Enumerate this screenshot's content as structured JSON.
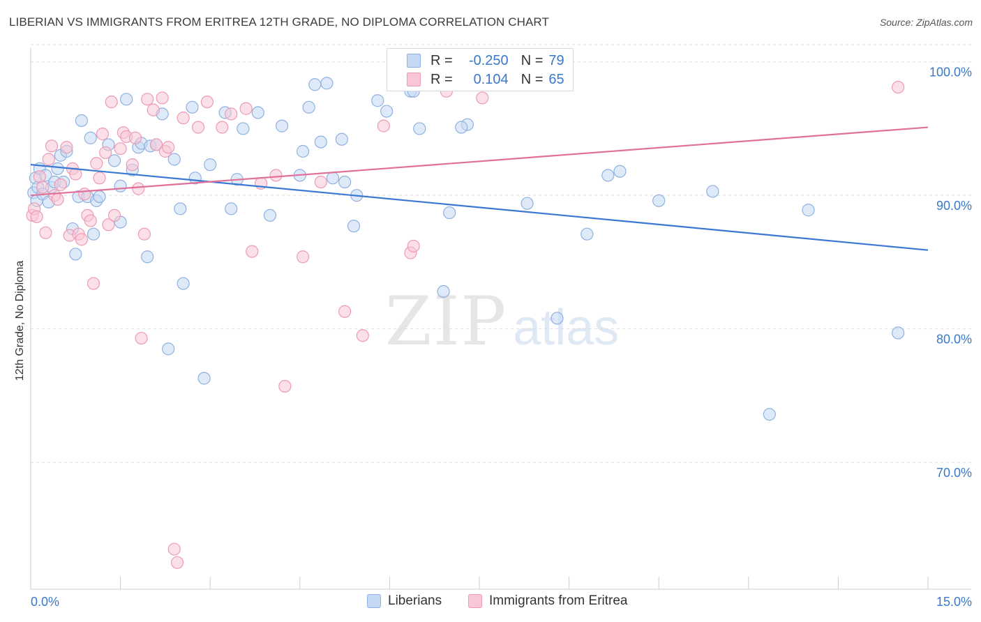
{
  "title": "LIBERIAN VS IMMIGRANTS FROM ERITREA 12TH GRADE, NO DIPLOMA CORRELATION CHART",
  "source": "Source: ZipAtlas.com",
  "watermark": {
    "zip": "ZIP",
    "atlas": "atlas"
  },
  "legend": {
    "rows": [
      {
        "r_label": "R =",
        "r_value": "-0.250",
        "n_label": "N =",
        "n_value": "79"
      },
      {
        "r_label": "R =",
        "r_value": "0.104",
        "n_label": "N =",
        "n_value": "65"
      }
    ]
  },
  "colors": {
    "blue_fill": "#c5d9f4",
    "blue_stroke": "#8fb1e0",
    "blue_line": "#3a78d4",
    "pink_fill": "#f8c6d6",
    "pink_stroke": "#ec9bb6",
    "pink_line": "#e0709a",
    "tick_text": "#3a78c9",
    "grid": "#dddddd"
  },
  "chart_data": {
    "type": "scatter",
    "title": "LIBERIAN VS IMMIGRANTS FROM ERITREA 12TH GRADE, NO DIPLOMA CORRELATION CHART",
    "xlabel": "",
    "ylabel": "12th Grade, No Diploma",
    "xlim": [
      0,
      15
    ],
    "ylim": [
      60.5,
      101.5
    ],
    "x_tick_labels": [
      "0.0%",
      "15.0%"
    ],
    "y_ticks": [
      70,
      80,
      90,
      100
    ],
    "y_tick_labels": [
      "70.0%",
      "80.0%",
      "90.0%",
      "100.0%"
    ],
    "grid": true,
    "legend_position": "bottom",
    "series": [
      {
        "name": "Liberians",
        "r": -0.25,
        "n": 79,
        "trend": {
          "x": [
            0,
            15
          ],
          "y": [
            92.3,
            85.9
          ]
        },
        "points": [
          [
            0.05,
            90.2
          ],
          [
            0.08,
            91.3
          ],
          [
            0.1,
            89.6
          ],
          [
            0.12,
            90.6
          ],
          [
            0.15,
            92.0
          ],
          [
            0.2,
            90.1
          ],
          [
            0.25,
            91.5
          ],
          [
            0.3,
            89.5
          ],
          [
            0.35,
            90.6
          ],
          [
            0.4,
            91.0
          ],
          [
            0.45,
            92.0
          ],
          [
            0.5,
            93.0
          ],
          [
            0.55,
            91.0
          ],
          [
            0.6,
            93.3
          ],
          [
            0.7,
            87.5
          ],
          [
            0.75,
            85.6
          ],
          [
            0.8,
            89.9
          ],
          [
            0.85,
            95.6
          ],
          [
            0.95,
            89.9
          ],
          [
            1.0,
            94.3
          ],
          [
            1.05,
            87.1
          ],
          [
            1.1,
            89.6
          ],
          [
            1.15,
            89.9
          ],
          [
            1.3,
            93.8
          ],
          [
            1.4,
            92.6
          ],
          [
            1.5,
            88.0
          ],
          [
            1.5,
            90.7
          ],
          [
            1.6,
            97.2
          ],
          [
            1.7,
            91.9
          ],
          [
            1.8,
            93.6
          ],
          [
            1.85,
            93.9
          ],
          [
            1.95,
            85.4
          ],
          [
            2.0,
            93.7
          ],
          [
            2.1,
            93.8
          ],
          [
            2.2,
            96.1
          ],
          [
            2.3,
            78.5
          ],
          [
            2.4,
            92.7
          ],
          [
            2.5,
            89.0
          ],
          [
            2.55,
            83.4
          ],
          [
            2.7,
            96.6
          ],
          [
            2.75,
            91.3
          ],
          [
            2.9,
            76.3
          ],
          [
            3.0,
            92.3
          ],
          [
            3.25,
            96.2
          ],
          [
            3.35,
            89.0
          ],
          [
            3.45,
            91.2
          ],
          [
            3.55,
            95.0
          ],
          [
            3.8,
            96.2
          ],
          [
            4.0,
            88.5
          ],
          [
            4.2,
            95.2
          ],
          [
            4.5,
            91.5
          ],
          [
            4.55,
            93.3
          ],
          [
            4.65,
            96.6
          ],
          [
            4.75,
            98.3
          ],
          [
            4.85,
            94.0
          ],
          [
            4.95,
            98.4
          ],
          [
            5.05,
            91.3
          ],
          [
            5.2,
            94.2
          ],
          [
            5.25,
            91.0
          ],
          [
            5.4,
            87.7
          ],
          [
            5.45,
            90.0
          ],
          [
            5.8,
            97.1
          ],
          [
            5.95,
            96.3
          ],
          [
            6.35,
            97.8
          ],
          [
            6.4,
            97.8
          ],
          [
            6.5,
            95.0
          ],
          [
            6.9,
            82.8
          ],
          [
            7.0,
            88.7
          ],
          [
            7.3,
            95.3
          ],
          [
            7.2,
            95.1
          ],
          [
            8.3,
            89.4
          ],
          [
            8.8,
            80.8
          ],
          [
            9.3,
            87.1
          ],
          [
            9.65,
            91.5
          ],
          [
            9.85,
            91.8
          ],
          [
            10.5,
            89.6
          ],
          [
            11.4,
            90.3
          ],
          [
            12.35,
            73.6
          ],
          [
            13.0,
            88.9
          ],
          [
            14.5,
            79.7
          ]
        ]
      },
      {
        "name": "Immigrants from Eritrea",
        "r": 0.104,
        "n": 65,
        "trend": {
          "x": [
            0,
            15
          ],
          "y": [
            90.0,
            95.1
          ]
        },
        "points": [
          [
            0.03,
            88.5
          ],
          [
            0.06,
            89.0
          ],
          [
            0.1,
            88.4
          ],
          [
            0.15,
            91.4
          ],
          [
            0.2,
            90.6
          ],
          [
            0.25,
            87.2
          ],
          [
            0.3,
            92.7
          ],
          [
            0.35,
            93.7
          ],
          [
            0.4,
            90.0
          ],
          [
            0.45,
            89.7
          ],
          [
            0.5,
            90.8
          ],
          [
            0.6,
            93.6
          ],
          [
            0.65,
            87.0
          ],
          [
            0.7,
            92.0
          ],
          [
            0.75,
            91.6
          ],
          [
            0.8,
            87.1
          ],
          [
            0.85,
            86.7
          ],
          [
            0.9,
            90.1
          ],
          [
            0.95,
            88.5
          ],
          [
            1.0,
            88.1
          ],
          [
            1.05,
            83.4
          ],
          [
            1.1,
            92.4
          ],
          [
            1.15,
            91.3
          ],
          [
            1.2,
            94.6
          ],
          [
            1.25,
            93.2
          ],
          [
            1.3,
            87.8
          ],
          [
            1.35,
            97.0
          ],
          [
            1.4,
            88.5
          ],
          [
            1.5,
            93.5
          ],
          [
            1.55,
            94.7
          ],
          [
            1.6,
            94.4
          ],
          [
            1.7,
            92.3
          ],
          [
            1.75,
            94.3
          ],
          [
            1.8,
            90.5
          ],
          [
            1.85,
            79.3
          ],
          [
            1.9,
            87.1
          ],
          [
            1.95,
            97.2
          ],
          [
            2.05,
            96.4
          ],
          [
            2.1,
            93.8
          ],
          [
            2.2,
            97.3
          ],
          [
            2.25,
            93.3
          ],
          [
            2.3,
            93.6
          ],
          [
            2.4,
            63.5
          ],
          [
            2.45,
            62.5
          ],
          [
            2.55,
            95.8
          ],
          [
            2.8,
            95.1
          ],
          [
            2.95,
            97.0
          ],
          [
            3.2,
            95.1
          ],
          [
            3.35,
            96.1
          ],
          [
            3.6,
            96.5
          ],
          [
            3.7,
            85.8
          ],
          [
            3.85,
            90.9
          ],
          [
            4.1,
            91.5
          ],
          [
            4.25,
            75.7
          ],
          [
            4.55,
            85.4
          ],
          [
            4.85,
            91.0
          ],
          [
            5.25,
            81.3
          ],
          [
            5.55,
            79.5
          ],
          [
            5.9,
            95.2
          ],
          [
            6.35,
            85.7
          ],
          [
            6.4,
            86.2
          ],
          [
            6.65,
            100.0
          ],
          [
            6.95,
            97.8
          ],
          [
            7.55,
            97.3
          ],
          [
            14.5,
            98.1
          ]
        ]
      }
    ]
  },
  "bottom_legend": {
    "items": [
      "Liberians",
      "Immigrants from Eritrea"
    ]
  }
}
